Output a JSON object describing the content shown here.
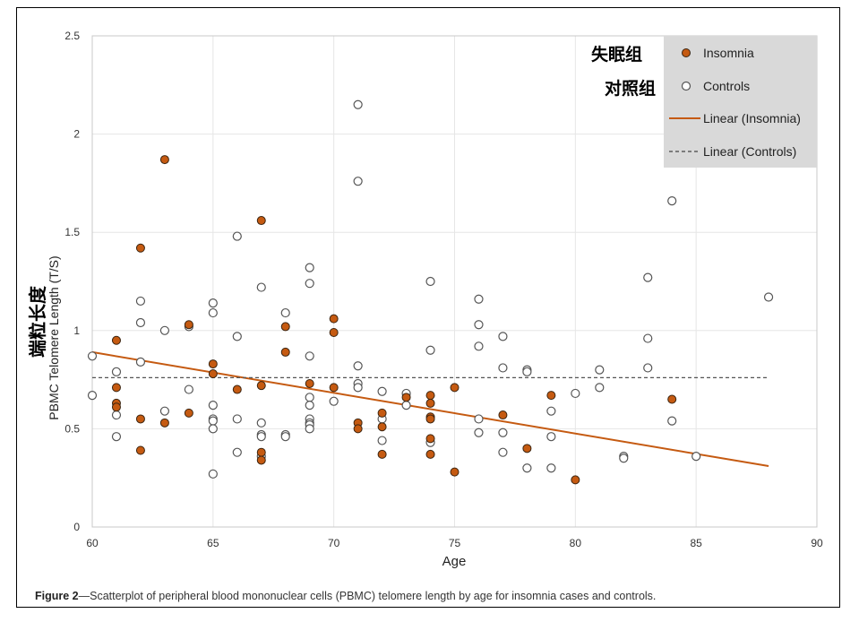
{
  "chart_data": {
    "type": "scatter",
    "xlabel": "Age",
    "ylabel": "PBMC Telomere Length (T/S)",
    "ylabel_cn": "端粒长度",
    "xlim": [
      60,
      90
    ],
    "ylim": [
      0,
      2.5
    ],
    "xticks": [
      60,
      65,
      70,
      75,
      80,
      85,
      90
    ],
    "yticks": [
      0,
      0.5,
      1,
      1.5,
      2,
      2.5
    ],
    "grid": true,
    "legend_position": "top-right",
    "legend": [
      {
        "cn": "失眠组",
        "label": "Insomnia"
      },
      {
        "cn": "对照组",
        "label": "Controls"
      },
      {
        "cn": "",
        "label": "Linear (Insomnia)"
      },
      {
        "cn": "",
        "label": "Linear (Controls)"
      }
    ],
    "colors": {
      "insomnia": "#c55a11",
      "controls_fill": "#ffffff",
      "controls_edge": "#555555",
      "trend_controls": "#555555",
      "legend_bg": "#d9d9d9",
      "grid": "#e6e6e6"
    },
    "series": [
      {
        "name": "Insomnia",
        "points": [
          [
            61,
            0.95
          ],
          [
            61,
            0.71
          ],
          [
            61,
            0.63
          ],
          [
            61,
            0.61
          ],
          [
            62,
            1.42
          ],
          [
            62,
            0.55
          ],
          [
            62,
            0.39
          ],
          [
            63,
            1.87
          ],
          [
            63,
            0.53
          ],
          [
            64,
            1.03
          ],
          [
            64,
            0.58
          ],
          [
            65,
            0.83
          ],
          [
            65,
            0.78
          ],
          [
            66,
            0.7
          ],
          [
            67,
            1.56
          ],
          [
            67,
            0.72
          ],
          [
            67,
            0.38
          ],
          [
            67,
            0.34
          ],
          [
            68,
            1.02
          ],
          [
            68,
            0.89
          ],
          [
            69,
            0.73
          ],
          [
            70,
            1.06
          ],
          [
            70,
            0.99
          ],
          [
            70,
            0.71
          ],
          [
            71,
            0.53
          ],
          [
            71,
            0.5
          ],
          [
            72,
            0.58
          ],
          [
            72,
            0.51
          ],
          [
            72,
            0.37
          ],
          [
            73,
            0.66
          ],
          [
            74,
            0.67
          ],
          [
            74,
            0.63
          ],
          [
            74,
            0.56
          ],
          [
            74,
            0.55
          ],
          [
            74,
            0.45
          ],
          [
            74,
            0.37
          ],
          [
            75,
            0.71
          ],
          [
            75,
            0.28
          ],
          [
            77,
            0.57
          ],
          [
            78,
            0.4
          ],
          [
            79,
            0.67
          ],
          [
            80,
            0.24
          ],
          [
            84,
            0.65
          ]
        ]
      },
      {
        "name": "Controls",
        "points": [
          [
            60,
            0.87
          ],
          [
            60,
            0.67
          ],
          [
            61,
            0.79
          ],
          [
            61,
            0.57
          ],
          [
            61,
            0.46
          ],
          [
            62,
            1.15
          ],
          [
            62,
            1.04
          ],
          [
            62,
            0.84
          ],
          [
            63,
            1.0
          ],
          [
            63,
            0.59
          ],
          [
            64,
            1.02
          ],
          [
            64,
            0.7
          ],
          [
            65,
            1.14
          ],
          [
            65,
            1.09
          ],
          [
            65,
            0.62
          ],
          [
            65,
            0.55
          ],
          [
            65,
            0.54
          ],
          [
            65,
            0.5
          ],
          [
            65,
            0.27
          ],
          [
            66,
            1.48
          ],
          [
            66,
            0.97
          ],
          [
            66,
            0.55
          ],
          [
            66,
            0.38
          ],
          [
            67,
            1.22
          ],
          [
            67,
            0.53
          ],
          [
            67,
            0.47
          ],
          [
            67,
            0.46
          ],
          [
            67,
            0.36
          ],
          [
            68,
            1.09
          ],
          [
            68,
            0.47
          ],
          [
            68,
            0.46
          ],
          [
            69,
            1.32
          ],
          [
            69,
            1.24
          ],
          [
            69,
            0.87
          ],
          [
            69,
            0.66
          ],
          [
            69,
            0.62
          ],
          [
            69,
            0.55
          ],
          [
            69,
            0.53
          ],
          [
            69,
            0.52
          ],
          [
            69,
            0.5
          ],
          [
            70,
            0.64
          ],
          [
            71,
            2.15
          ],
          [
            71,
            1.76
          ],
          [
            71,
            0.82
          ],
          [
            71,
            0.73
          ],
          [
            71,
            0.71
          ],
          [
            72,
            0.69
          ],
          [
            72,
            0.55
          ],
          [
            72,
            0.44
          ],
          [
            73,
            0.68
          ],
          [
            73,
            0.62
          ],
          [
            74,
            1.25
          ],
          [
            74,
            0.9
          ],
          [
            74,
            0.43
          ],
          [
            76,
            1.16
          ],
          [
            76,
            1.03
          ],
          [
            76,
            0.92
          ],
          [
            76,
            0.55
          ],
          [
            76,
            0.48
          ],
          [
            77,
            0.97
          ],
          [
            77,
            0.81
          ],
          [
            77,
            0.48
          ],
          [
            77,
            0.38
          ],
          [
            78,
            0.8
          ],
          [
            78,
            0.79
          ],
          [
            78,
            0.3
          ],
          [
            79,
            0.59
          ],
          [
            79,
            0.46
          ],
          [
            79,
            0.3
          ],
          [
            80,
            0.68
          ],
          [
            81,
            0.8
          ],
          [
            81,
            0.71
          ],
          [
            82,
            0.36
          ],
          [
            82,
            0.35
          ],
          [
            83,
            1.27
          ],
          [
            83,
            0.96
          ],
          [
            83,
            0.81
          ],
          [
            84,
            1.66
          ],
          [
            84,
            0.54
          ],
          [
            85,
            0.36
          ],
          [
            88,
            1.17
          ]
        ]
      }
    ],
    "trendlines": [
      {
        "name": "Linear (Insomnia)",
        "x": [
          60,
          88
        ],
        "y": [
          0.89,
          0.31
        ]
      },
      {
        "name": "Linear (Controls)",
        "x": [
          60,
          88
        ],
        "y": [
          0.76,
          0.76
        ]
      }
    ]
  },
  "caption": {
    "label": "Figure 2",
    "text": "—Scatterplot of peripheral blood mononuclear cells (PBMC) telomere length by age for insomnia cases and controls."
  }
}
